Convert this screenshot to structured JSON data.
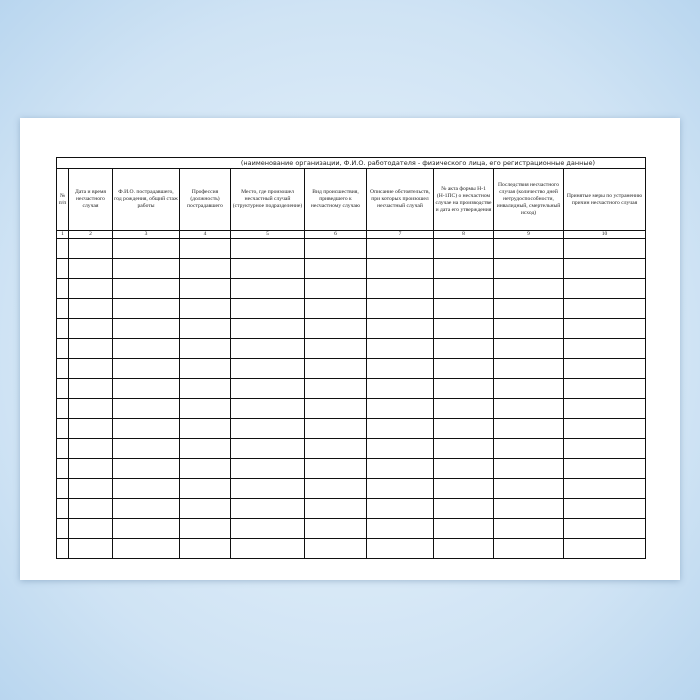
{
  "form": {
    "title": "(наименование организации, Ф.И.О. работодателя - физического лица, его регистрационные данные)",
    "headers": [
      "№ п/п",
      "Дата и время несчастного случая",
      "Ф.И.О. пострадавшего, год рождения, общий стаж работы",
      "Профессия (должность) пострадавшего",
      "Место, где произошел несчастный случай (структурное подразделение)",
      "Вид происшествия, приведшего к несчастному случаю",
      "Описание обстоятельств, при которых произошел несчастный случай",
      "№ акта формы Н-1 (Н-1ПС) о несчастном случае на производстве и дата его утверждения",
      "Последствия несчастного случая (количество дней нетрудоспособности, инвалидный, смертельный исход)",
      "Принятые меры по устранению причин несчастного случая"
    ],
    "column_numbers": [
      "1",
      "2",
      "3",
      "4",
      "5",
      "6",
      "7",
      "8",
      "9",
      "10"
    ],
    "empty_rows": 16
  }
}
